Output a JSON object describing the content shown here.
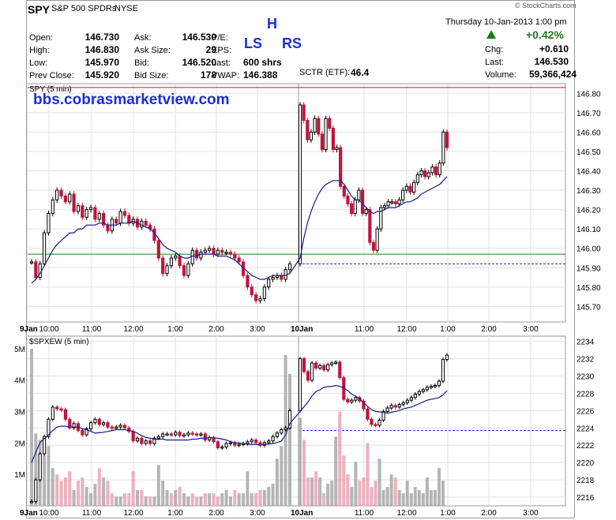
{
  "header": {
    "symbol": "SPY",
    "name": "S&P 500 SPDRs",
    "exchange": "NYSE",
    "watermark": "© StockCharts.com",
    "date": "Thursday 10-Jan-2013 1:00 pm",
    "change_pct": "+0.42%",
    "quotes": [
      {
        "label": "Open:",
        "value": "146.730"
      },
      {
        "label": "High:",
        "value": "146.830"
      },
      {
        "label": "Low:",
        "value": "145.970"
      },
      {
        "label": "Prev Close:",
        "value": "145.920"
      }
    ],
    "quotes2": [
      {
        "label": "Ask:",
        "value": "146.530"
      },
      {
        "label": "Ask Size:",
        "value": "29"
      },
      {
        "label": "Bid:",
        "value": "146.520"
      },
      {
        "label": "Bid Size:",
        "value": "178"
      }
    ],
    "quotes3": [
      {
        "label": "P/E:",
        "value": ""
      },
      {
        "label": "EPS:",
        "value": ""
      },
      {
        "label": "Last:",
        "value": "600 shrs"
      },
      {
        "label": "VWAP:",
        "value": "146.388"
      }
    ],
    "sctr_label": "SCTR (ETF):",
    "sctr_value": "46.4",
    "right": [
      {
        "label": "Chg:",
        "value": "+0.610"
      },
      {
        "label": "Last:",
        "value": "146.530"
      },
      {
        "label": "Volume:",
        "value": "59,366,424"
      }
    ]
  },
  "annotations": {
    "head": "H",
    "left_shoulder": "LS",
    "right_shoulder": "RS",
    "site": "bbs.cobrasmarketview.com"
  },
  "colors": {
    "up": "#000000",
    "down": "#c0143c",
    "ma": "#1a1a8c",
    "vol_up": "#a8a8a8",
    "vol_down": "#eba2b4",
    "accent": "#1a2fd6",
    "green": "#1a7a1a"
  },
  "chart_data": [
    {
      "type": "line",
      "title": "SPY (5 min)",
      "x_tick_labels": [
        "9Jan",
        "10:00",
        "11:00",
        "12:00",
        "1:00",
        "2:00",
        "3:00",
        "10Jan",
        "11:00",
        "12:00",
        "1:00",
        "2:00",
        "3:00"
      ],
      "y_tick_labels": [
        "146.80",
        "146.70",
        "146.60",
        "146.50",
        "146.40",
        "146.30",
        "146.20",
        "146.10",
        "146.00",
        "145.90",
        "145.80",
        "145.70"
      ],
      "ylim": [
        145.62,
        146.85
      ],
      "reference_lines": [
        {
          "name": "prev_close",
          "value": 145.97,
          "color": "#1a7a1a"
        },
        {
          "name": "high",
          "value": 146.83,
          "color": "#c0143c"
        },
        {
          "name": "prev",
          "value": 145.92,
          "color": "#1a2fd6"
        }
      ],
      "series": [
        {
          "values": [
            145.93,
            145.85,
            145.92,
            146.08,
            146.18,
            146.25,
            146.3,
            146.27,
            146.24,
            146.28,
            146.19,
            146.22,
            146.16,
            146.2,
            146.21,
            146.15,
            146.18,
            146.12,
            146.09,
            146.15,
            146.13,
            146.19,
            146.17,
            146.13,
            146.15,
            146.11,
            146.14,
            146.12,
            146.1,
            146.04,
            145.95,
            145.87,
            145.91,
            145.95,
            145.96,
            145.91,
            145.86,
            145.92,
            145.99,
            145.95,
            145.98,
            145.99,
            146.0,
            145.97,
            145.99,
            145.98,
            145.98,
            145.97,
            145.95,
            145.93,
            145.86,
            145.8,
            145.76,
            145.73,
            145.74,
            145.8,
            145.84,
            145.85,
            145.86,
            145.84,
            145.89,
            145.92,
            146.74,
            146.66,
            146.56,
            146.6,
            146.67,
            146.59,
            146.51,
            146.67,
            146.62,
            146.51,
            146.52,
            146.32,
            146.27,
            146.23,
            146.18,
            146.25,
            146.3,
            146.18,
            146.2,
            146.03,
            145.99,
            146.1,
            146.21,
            146.22,
            146.24,
            146.24,
            146.23,
            146.25,
            146.3,
            146.32,
            146.29,
            146.34,
            146.38,
            146.4,
            146.37,
            146.39,
            146.42,
            146.38,
            146.44,
            146.6,
            146.52
          ]
        },
        {
          "values": [
            145.82,
            145.84,
            145.87,
            145.91,
            145.95,
            145.99,
            146.02,
            146.04,
            146.06,
            146.08,
            146.08,
            146.1,
            146.1,
            146.12,
            146.12,
            146.12,
            146.13,
            146.13,
            146.12,
            146.12,
            146.12,
            146.13,
            146.13,
            146.13,
            146.14,
            146.13,
            146.12,
            146.11,
            146.1,
            146.08,
            146.05,
            146.02,
            146.0,
            145.99,
            145.98,
            145.96,
            145.95,
            145.95,
            145.96,
            145.96,
            145.97,
            145.97,
            145.97,
            145.97,
            145.96,
            145.96,
            145.96,
            145.95,
            145.94,
            145.92,
            145.9,
            145.88,
            145.86,
            145.85,
            145.84,
            145.84,
            145.85,
            145.86,
            145.86,
            145.86,
            145.86,
            145.87,
            145.95,
            146.05,
            146.13,
            146.19,
            146.24,
            146.28,
            146.31,
            146.33,
            146.34,
            146.35,
            146.35,
            146.35,
            146.33,
            146.3,
            146.27,
            146.25,
            146.25,
            146.23,
            146.21,
            146.19,
            146.18,
            146.19,
            146.19,
            146.2,
            146.21,
            146.21,
            146.21,
            146.22,
            146.23,
            146.24,
            146.24,
            146.25,
            146.26,
            146.28,
            146.29,
            146.3,
            146.31,
            146.32,
            146.33,
            146.35,
            146.37
          ]
        }
      ]
    },
    {
      "type": "line",
      "title": "$SPXEW (5 min)",
      "x_tick_labels": [
        "9Jan",
        "10:00",
        "11:00",
        "12:00",
        "1:00",
        "2:00",
        "3:00",
        "10Jan",
        "11:00",
        "12:00",
        "1:00",
        "2:00",
        "3:00"
      ],
      "y_tick_labels": [
        "2234",
        "2232",
        "2230",
        "2228",
        "2226",
        "2224",
        "2222",
        "2220",
        "2218",
        "2216"
      ],
      "volume_tick_labels": [
        "5M",
        "4M",
        "3M",
        "2M",
        "1M"
      ],
      "ylim": [
        2215,
        2234.6
      ],
      "reference_lines": [
        {
          "name": "prev",
          "value": 2223.7,
          "color": "#1a2fd6"
        }
      ],
      "series": [
        {
          "values": [
            2215.5,
            2218,
            2221,
            2223,
            2225,
            2226.4,
            2226.2,
            2226.1,
            2225,
            2224,
            2224.5,
            2223.7,
            2223.2,
            2223.9,
            2224.6,
            2225,
            2224.4,
            2224.6,
            2224.1,
            2224,
            2224.1,
            2224.3,
            2224,
            2223.6,
            2222.5,
            2222.8,
            2222.2,
            2222.5,
            2222.2,
            2222.8,
            2223,
            2223.3,
            2223.3,
            2223.2,
            2223.5,
            2223.1,
            2223.2,
            2223.4,
            2223.3,
            2223.2,
            2223.3,
            2222.6,
            2222.9,
            2222.4,
            2221.7,
            2221.8,
            2222.2,
            2222.3,
            2222,
            2222.1,
            2222.2,
            2222.4,
            2222.6,
            2222.3,
            2222,
            2222.3,
            2222.5,
            2223,
            2223.4,
            2223.8,
            2224,
            2226,
            2232,
            2230.5,
            2229.5,
            2231.5,
            2230.9,
            2231.2,
            2230.7,
            2231.3,
            2231.5,
            2231.6,
            2229.8,
            2227.3,
            2227,
            2227.2,
            2227.5,
            2227.1,
            2226.2,
            2225,
            2224.4,
            2224.3,
            2224.9,
            2225.9,
            2226.3,
            2226.6,
            2226.4,
            2226.7,
            2226.9,
            2227.2,
            2227.5,
            2227.9,
            2228.2,
            2228.4,
            2228.7,
            2228.8,
            2228.9,
            2229.4,
            2231.9,
            2232.4
          ]
        },
        {
          "values": [
            2220,
            2221.2,
            2222.3,
            2223.2,
            2223.7,
            2224.1,
            2224.2,
            2224.2,
            2224.1,
            2224.1,
            2223.9,
            2223.8,
            2223.6,
            2223.4,
            2223.5,
            2223.6,
            2223.7,
            2223.8,
            2223.8,
            2223.8,
            2223.6,
            2223.4,
            2223.1,
            2222.9,
            2222.8,
            2222.7,
            2222.7,
            2222.6,
            2222.6,
            2222.6,
            2222.6,
            2222.6,
            2222.7,
            2222.7,
            2222.8,
            2222.8,
            2222.9,
            2222.8,
            2222.7,
            2222.6,
            2222.4,
            2222.3,
            2222.2,
            2222.1,
            2222.1,
            2222.1,
            2222,
            2222.1,
            2222.2,
            2222.3,
            2222.5,
            2223.2,
            2224.5,
            2225.9,
            2227,
            2227.7,
            2228.2,
            2228.4,
            2228.7,
            2228.8,
            2228.9,
            2228.8,
            2228.6,
            2228.3,
            2227.9,
            2227.4,
            2226.9,
            2226.5,
            2226.1,
            2225.9,
            2225.8,
            2225.7,
            2225.8,
            2225.9,
            2226,
            2226.2,
            2226.4,
            2226.6,
            2226.8,
            2227,
            2227.2,
            2227.3,
            2227.5,
            2227.8,
            2228.3
          ]
        }
      ],
      "volume": [
        5.0,
        2.3,
        2.1,
        1.6,
        1.9,
        1.2,
        1.0,
        0.8,
        0.9,
        1.1,
        0.5,
        0.8,
        0.9,
        0.6,
        0.4,
        0.7,
        1.2,
        0.9,
        0.8,
        0.4,
        0.3,
        0.3,
        0.4,
        0.4,
        1.1,
        0.5,
        0.5,
        0.3,
        0.3,
        0.3,
        1.3,
        0.8,
        0.5,
        0.4,
        0.5,
        0.6,
        0.4,
        0.3,
        0.4,
        0.3,
        0.3,
        0.4,
        0.4,
        0.4,
        0.3,
        0.4,
        0.5,
        0.3,
        0.5,
        0.4,
        0.4,
        1.1,
        0.4,
        0.4,
        0.5,
        0.5,
        0.6,
        0.7,
        1.5,
        1.9,
        4.8,
        4.2,
        2.8,
        2.1,
        0.9,
        0.9,
        1.1,
        0.9,
        0.4,
        0.7,
        0.8,
        2.2,
        3.0,
        1.6,
        1.0,
        0.6,
        1.4,
        0.8,
        0.9,
        2.0,
        0.6,
        0.8,
        1.5,
        0.5,
        0.6,
        1.0,
        0.9,
        0.5,
        0.4,
        0.8,
        0.4,
        0.6,
        0.5,
        0.4,
        0.9,
        0.5,
        0.5,
        1.2,
        0.8
      ]
    }
  ]
}
